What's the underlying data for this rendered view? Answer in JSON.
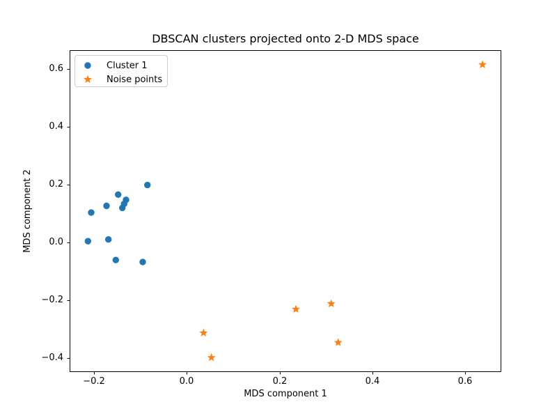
{
  "figure": {
    "background": "#ffffff",
    "text_color": "#000000",
    "spine_color": "#000000"
  },
  "chart_data": {
    "type": "scatter",
    "title": "DBSCAN clusters projected onto 2-D MDS space",
    "xlabel": "MDS component 1",
    "ylabel": "MDS component 2",
    "xlim": [
      -0.2525,
      0.6775
    ],
    "ylim": [
      -0.447,
      0.665
    ],
    "grid": false,
    "xticks": {
      "values": [
        -0.2,
        0.0,
        0.2,
        0.4,
        0.6
      ],
      "labels": [
        "−0.2",
        "0.0",
        "0.2",
        "0.4",
        "0.6"
      ]
    },
    "yticks": {
      "values": [
        -0.4,
        -0.2,
        0.0,
        0.2,
        0.4,
        0.6
      ],
      "labels": [
        "−0.4",
        "−0.2",
        "0.0",
        "0.2",
        "0.4",
        "0.6"
      ]
    },
    "legend": {
      "position": "upper left",
      "entries": [
        {
          "label": "Cluster 1",
          "marker": "circle",
          "color": "#1f77b4"
        },
        {
          "label": "Noise points",
          "marker": "star",
          "color": "#ff7f0e"
        }
      ]
    },
    "series": [
      {
        "name": "Cluster 1",
        "marker": "circle",
        "color": "#1f77b4",
        "points": [
          [
            -0.085,
            0.199
          ],
          [
            -0.148,
            0.166
          ],
          [
            -0.131,
            0.148
          ],
          [
            -0.135,
            0.134
          ],
          [
            -0.139,
            0.12
          ],
          [
            -0.173,
            0.127
          ],
          [
            -0.206,
            0.104
          ],
          [
            -0.213,
            0.005
          ],
          [
            -0.169,
            0.011
          ],
          [
            -0.153,
            -0.06
          ],
          [
            -0.095,
            -0.067
          ]
        ]
      },
      {
        "name": "Noise points",
        "marker": "star",
        "color": "#ff7f0e",
        "points": [
          [
            0.637,
            0.615
          ],
          [
            0.235,
            -0.23
          ],
          [
            0.311,
            -0.211
          ],
          [
            0.036,
            -0.312
          ],
          [
            0.326,
            -0.345
          ],
          [
            0.053,
            -0.397
          ]
        ]
      }
    ]
  }
}
